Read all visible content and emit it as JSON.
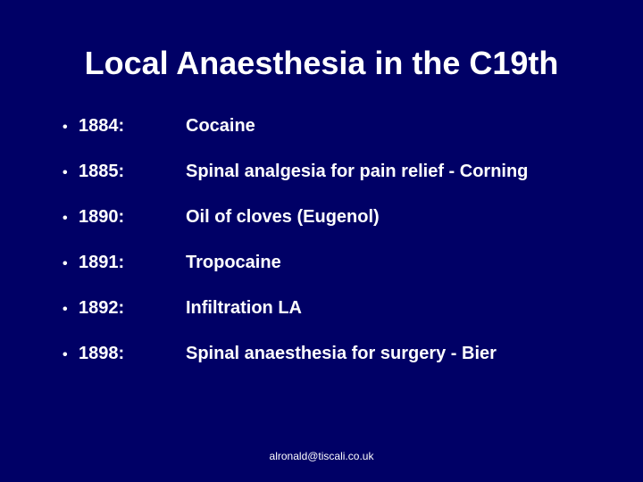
{
  "slide": {
    "background_color": "#000066",
    "text_color": "#ffffff",
    "font_family": "Comic Sans MS",
    "title": {
      "text": "Local Anaesthesia in the C19th",
      "fontsize": 36,
      "weight": "bold",
      "align": "center"
    },
    "bullets": {
      "fontsize": 20,
      "weight": "bold",
      "marker": "•",
      "items": [
        {
          "year": "1884:",
          "desc": "Cocaine"
        },
        {
          "year": "1885:",
          "desc": "Spinal analgesia for pain relief - Corning"
        },
        {
          "year": "1890:",
          "desc": "Oil of cloves (Eugenol)"
        },
        {
          "year": "1891:",
          "desc": "Tropocaine"
        },
        {
          "year": "1892:",
          "desc": "Infiltration LA"
        },
        {
          "year": "1898:",
          "desc": "Spinal anaesthesia for surgery - Bier"
        }
      ]
    },
    "footer": {
      "text": "alronald@tiscali.co.uk",
      "fontsize": 12
    }
  }
}
